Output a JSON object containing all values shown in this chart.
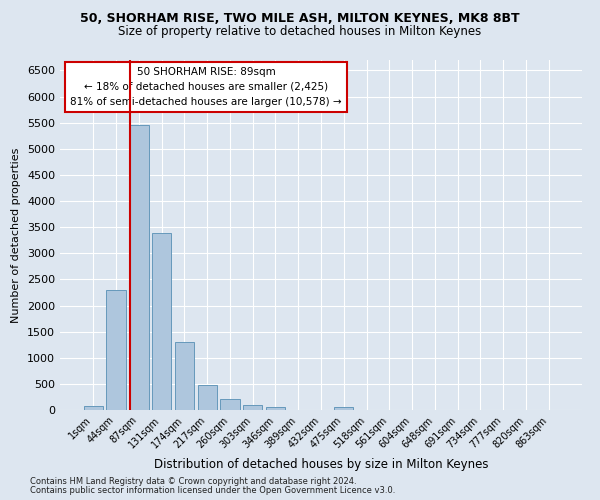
{
  "title1": "50, SHORHAM RISE, TWO MILE ASH, MILTON KEYNES, MK8 8BT",
  "title2": "Size of property relative to detached houses in Milton Keynes",
  "xlabel": "Distribution of detached houses by size in Milton Keynes",
  "ylabel": "Number of detached properties",
  "footnote1": "Contains HM Land Registry data © Crown copyright and database right 2024.",
  "footnote2": "Contains public sector information licensed under the Open Government Licence v3.0.",
  "bar_labels": [
    "1sqm",
    "44sqm",
    "87sqm",
    "131sqm",
    "174sqm",
    "217sqm",
    "260sqm",
    "303sqm",
    "346sqm",
    "389sqm",
    "432sqm",
    "475sqm",
    "518sqm",
    "561sqm",
    "604sqm",
    "648sqm",
    "691sqm",
    "734sqm",
    "777sqm",
    "820sqm",
    "863sqm"
  ],
  "bar_values": [
    75,
    2300,
    5450,
    3380,
    1300,
    480,
    210,
    100,
    60,
    5,
    5,
    60,
    5,
    5,
    5,
    5,
    5,
    5,
    5,
    5,
    5
  ],
  "bar_color": "#aec6dd",
  "bar_edge_color": "#6699bb",
  "background_color": "#dde6f0",
  "grid_color": "#ffffff",
  "vline_color": "#cc0000",
  "annotation_text": "50 SHORHAM RISE: 89sqm\n← 18% of detached houses are smaller (2,425)\n81% of semi-detached houses are larger (10,578) →",
  "annotation_box_color": "#ffffff",
  "annotation_box_edge": "#cc0000",
  "ylim": [
    0,
    6700
  ],
  "yticks": [
    0,
    500,
    1000,
    1500,
    2000,
    2500,
    3000,
    3500,
    4000,
    4500,
    5000,
    5500,
    6000,
    6500
  ]
}
